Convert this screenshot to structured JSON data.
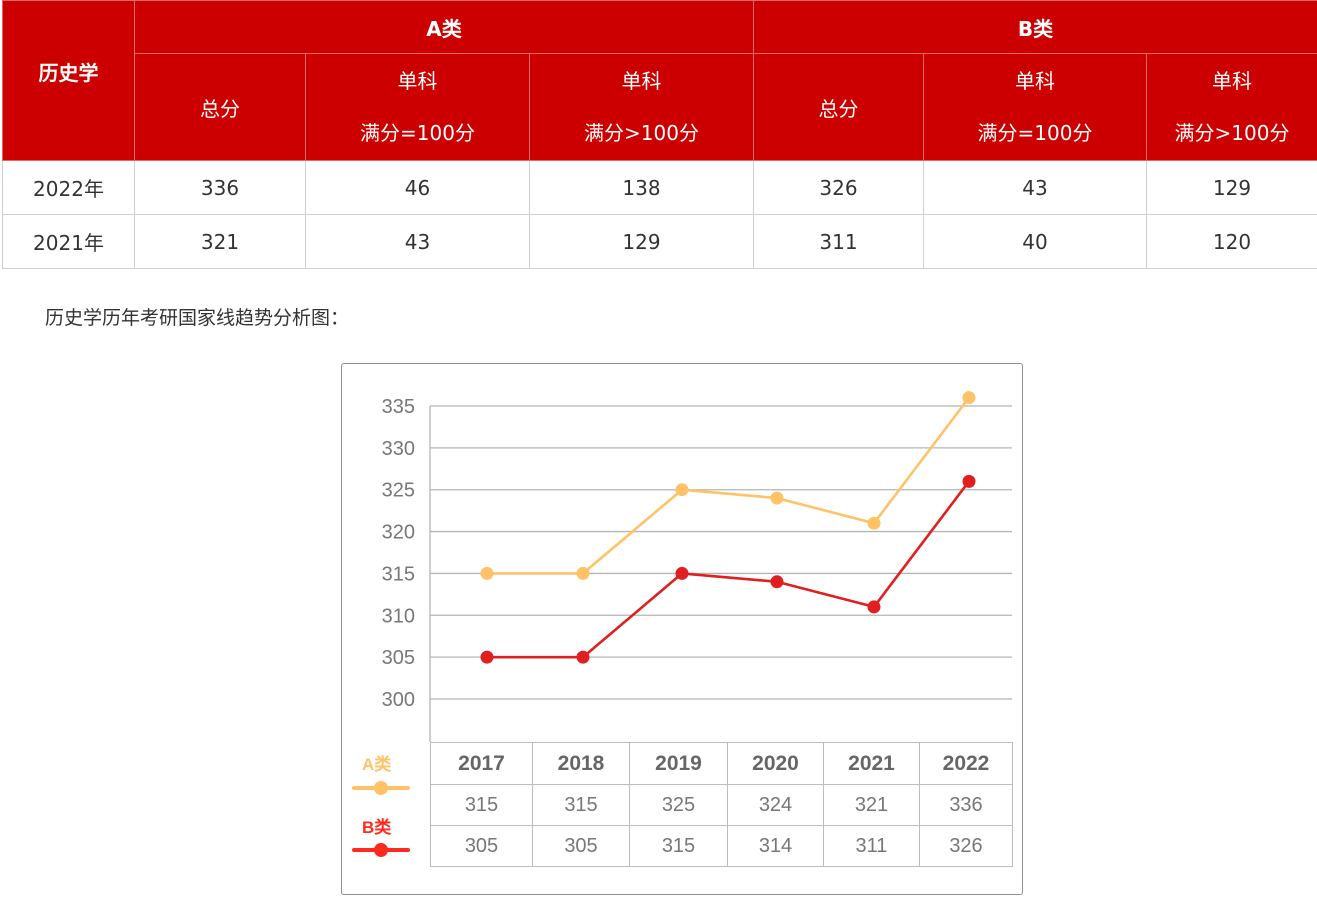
{
  "score_table": {
    "corner_label": "历史学",
    "groups": [
      {
        "label": "A类"
      },
      {
        "label": "B类"
      }
    ],
    "subheaders": {
      "total": "总分",
      "single_line1": "单科",
      "single_eq100": "满分=100分",
      "single_gt100": "满分>100分"
    },
    "rows": [
      {
        "year": "2022年",
        "a_total": "336",
        "a_eq100": "46",
        "a_gt100": "138",
        "b_total": "326",
        "b_eq100": "43",
        "b_gt100": "129"
      },
      {
        "year": "2021年",
        "a_total": "321",
        "a_eq100": "43",
        "a_gt100": "129",
        "b_total": "311",
        "b_eq100": "40",
        "b_gt100": "120"
      }
    ],
    "header_bg": "#cc0000"
  },
  "caption": "历史学历年考研国家线趋势分析图：",
  "chart_data": {
    "type": "line",
    "title": "历史学历年考研国家线趋势分析图",
    "x": [
      "2017",
      "2018",
      "2019",
      "2020",
      "2021",
      "2022"
    ],
    "series": [
      {
        "name": "A类",
        "color": "#ffc266",
        "values": [
          315,
          315,
          325,
          324,
          321,
          336
        ]
      },
      {
        "name": "B类",
        "color": "#e02020",
        "values": [
          305,
          305,
          315,
          314,
          311,
          326
        ]
      }
    ],
    "yticks": [
      "335",
      "330",
      "325",
      "320",
      "315",
      "310",
      "305",
      "300"
    ],
    "ylim": [
      300,
      335
    ],
    "grid": true,
    "legend_position": "bottom-left",
    "data_table": true,
    "xlabel": "",
    "ylabel": ""
  }
}
